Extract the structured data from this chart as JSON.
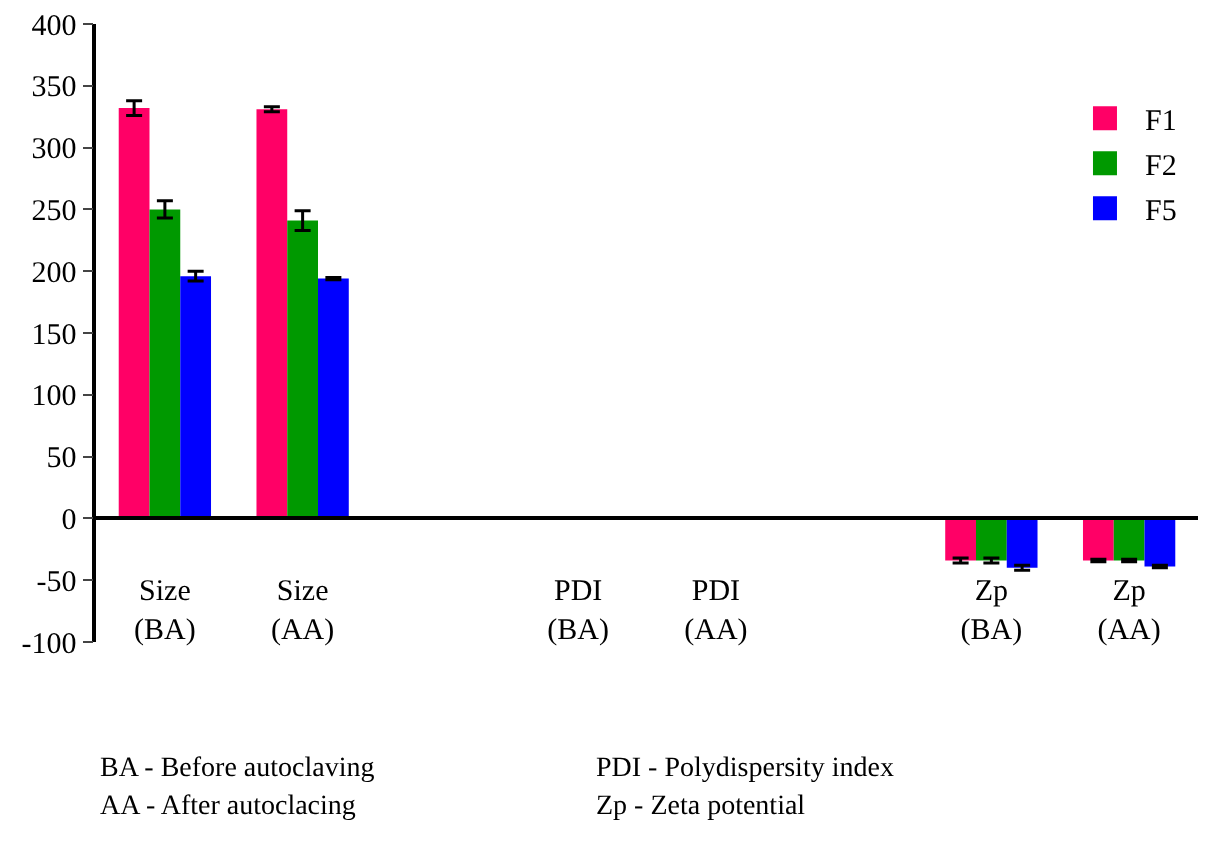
{
  "chart_data": {
    "type": "bar",
    "categories": [
      "Size (BA)",
      "Size (AA)",
      null,
      "PDI (BA)",
      "PDI (AA)",
      null,
      "Zp (BA)",
      "Zp (AA)"
    ],
    "series": [
      {
        "name": "F1",
        "color": "#ff0066",
        "values": [
          332,
          331,
          null,
          0,
          0,
          null,
          -34,
          -34
        ],
        "errors": [
          6,
          2,
          null,
          null,
          null,
          null,
          2,
          1
        ]
      },
      {
        "name": "F2",
        "color": "#009900",
        "values": [
          250,
          241,
          null,
          0,
          0,
          null,
          -34,
          -34
        ],
        "errors": [
          7,
          8,
          null,
          null,
          null,
          null,
          2,
          1
        ]
      },
      {
        "name": "F5",
        "color": "#0000ff",
        "values": [
          196,
          194,
          null,
          0,
          0,
          null,
          -40,
          -39
        ],
        "errors": [
          4,
          1,
          null,
          null,
          null,
          null,
          2,
          1
        ]
      }
    ],
    "ylim": [
      -100,
      400
    ],
    "yticks": [
      -100,
      -50,
      0,
      50,
      100,
      150,
      200,
      250,
      300,
      350,
      400
    ],
    "grid": false,
    "legend": "top right",
    "annotations": [
      "BA - Before autoclaving",
      "AA - After autoclacing",
      "PDI - Polydispersity index",
      "Zp - Zeta potential"
    ]
  }
}
